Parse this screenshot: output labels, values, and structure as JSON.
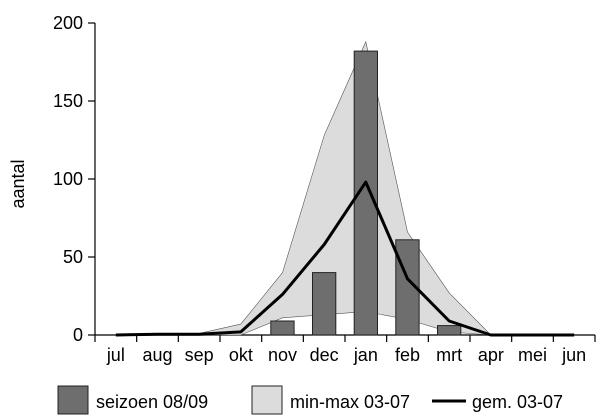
{
  "chart_data": {
    "type": "bar",
    "categories": [
      "jul",
      "aug",
      "sep",
      "okt",
      "nov",
      "dec",
      "jan",
      "feb",
      "mrt",
      "apr",
      "mei",
      "jun"
    ],
    "ylabel": "aantal",
    "xlabel": "",
    "ylim": [
      0,
      200
    ],
    "yticks": [
      0,
      50,
      100,
      150,
      200
    ],
    "series": [
      {
        "name": "seizoen 08/09",
        "kind": "bar",
        "color": "#6e6e6e",
        "values": [
          0,
          0,
          0,
          0,
          9,
          40,
          182,
          61,
          6,
          0,
          0,
          0
        ]
      },
      {
        "name": "min-max 03-07",
        "kind": "range",
        "color": "#dcdcdc",
        "min": [
          0,
          0,
          0,
          0,
          11,
          13,
          15,
          10,
          2,
          0,
          0,
          0
        ],
        "max": [
          0,
          1,
          1,
          7,
          40,
          128,
          188,
          66,
          27,
          0,
          0,
          0
        ]
      },
      {
        "name": "gem. 03-07",
        "kind": "line",
        "color": "#000000",
        "values": [
          0,
          0.5,
          0.5,
          2,
          26,
          58,
          98,
          36,
          9,
          0,
          0,
          0
        ]
      }
    ],
    "legend_position": "bottom"
  }
}
